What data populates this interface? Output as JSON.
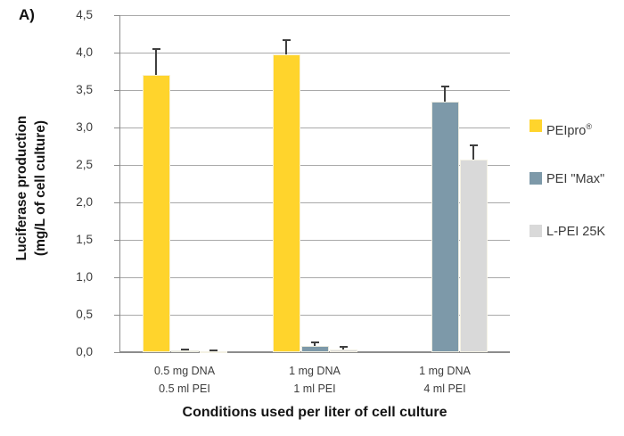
{
  "panel_label": "A)",
  "colors": {
    "background": "#ffffff",
    "gridline": "#a9a9a9",
    "axis_line": "#8c8c8c",
    "error_bar": "#3f3f3f",
    "tick_text": "#3c3c3c",
    "title_text": "#141414",
    "series_yellow": "#ffd42c",
    "series_slate": "#7d99a9",
    "series_gray": "#d9d9d9"
  },
  "chart_data": {
    "type": "bar",
    "title": "",
    "xlabel": "Conditions used per liter of cell culture",
    "ylabel_lines": [
      "Luciferase production",
      "(mg/L of cell culture)"
    ],
    "categories": [
      [
        "0.5 mg DNA",
        "0.5 ml PEI"
      ],
      [
        "1 mg DNA",
        "1 ml PEI"
      ],
      [
        "1 mg DNA",
        "4 ml PEI"
      ]
    ],
    "series": [
      {
        "name": "PEIpro®",
        "color": "#ffd42c",
        "values": [
          3.7,
          3.98,
          null
        ],
        "errors_plus": [
          0.35,
          0.19,
          null
        ]
      },
      {
        "name": "PEI \"Max\"",
        "color": "#7d99a9",
        "values": [
          0.02,
          0.08,
          3.35
        ],
        "errors_plus": [
          0.02,
          0.05,
          0.2
        ]
      },
      {
        "name": "L-PEI 25K",
        "color": "#d9d9d9",
        "values": [
          0.01,
          0.04,
          2.57
        ],
        "errors_plus": [
          0.015,
          0.035,
          0.19
        ]
      }
    ],
    "ylim": [
      0,
      4.5
    ],
    "ytick_step": 0.5,
    "ytick_labels": [
      "0,0",
      "0,5",
      "1,0",
      "1,5",
      "2,0",
      "2,5",
      "3,0",
      "3,5",
      "4,0",
      "4,5"
    ],
    "grid": true,
    "legend_position": "right"
  }
}
